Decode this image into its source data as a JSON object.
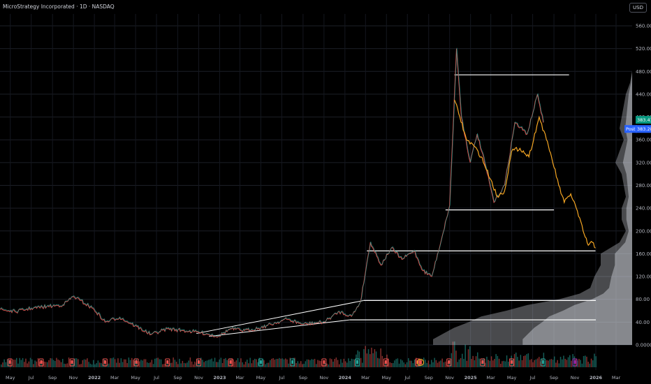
{
  "header": {
    "title": "MicroStrategy Incorporated · 1D · NASDAQ",
    "currency_button": "USD"
  },
  "price_badges": [
    {
      "text": "383.41",
      "color": "#089981",
      "value": 383.41
    },
    {
      "text": "383.28",
      "color": "#2962ff",
      "value": 383.28,
      "prefix": "Post"
    }
  ],
  "colors": {
    "background": "#000000",
    "up": "#26a69a",
    "down": "#ef5350",
    "post_line": "#f5a623",
    "volume_profile": "#d1d4dc",
    "trendline": "#ffffff",
    "earnings_flag": "#ef5350",
    "dividend_flag": "#26a69a",
    "event_flag": "#9c27b0"
  },
  "chart_data": {
    "type": "line",
    "title": "",
    "xlabel": "",
    "ylabel": "",
    "ylim": [
      0,
      560
    ],
    "y_ticks": [
      0,
      40,
      80,
      120,
      160,
      200,
      240,
      280,
      320,
      360,
      400,
      440,
      480,
      520,
      560
    ],
    "y_tick_labels": [
      "0.0000",
      "40.00",
      "80.00",
      "120.00",
      "160.00",
      "200.00",
      "240.00",
      "280.00",
      "320.00",
      "360.00",
      "400.00",
      "440.00",
      "480.00",
      "520.00",
      "560.00"
    ],
    "x_ticks": [
      {
        "label": "May",
        "date": "2021-05-01",
        "bold": false
      },
      {
        "label": "Jul",
        "date": "2021-07-01",
        "bold": false
      },
      {
        "label": "Sep",
        "date": "2021-09-01",
        "bold": false
      },
      {
        "label": "Nov",
        "date": "2021-11-01",
        "bold": false
      },
      {
        "label": "2022",
        "date": "2022-01-01",
        "bold": true
      },
      {
        "label": "Mar",
        "date": "2022-03-01",
        "bold": false
      },
      {
        "label": "May",
        "date": "2022-05-01",
        "bold": false
      },
      {
        "label": "Jul",
        "date": "2022-07-01",
        "bold": false
      },
      {
        "label": "Sep",
        "date": "2022-09-01",
        "bold": false
      },
      {
        "label": "Nov",
        "date": "2022-11-01",
        "bold": false
      },
      {
        "label": "2023",
        "date": "2023-01-01",
        "bold": true
      },
      {
        "label": "Mar",
        "date": "2023-03-01",
        "bold": false
      },
      {
        "label": "May",
        "date": "2023-05-01",
        "bold": false
      },
      {
        "label": "Jul",
        "date": "2023-07-01",
        "bold": false
      },
      {
        "label": "Sep",
        "date": "2023-09-01",
        "bold": false
      },
      {
        "label": "Nov",
        "date": "2023-11-01",
        "bold": false
      },
      {
        "label": "2024",
        "date": "2024-01-01",
        "bold": true
      },
      {
        "label": "Mar",
        "date": "2024-03-01",
        "bold": false
      },
      {
        "label": "May",
        "date": "2024-05-01",
        "bold": false
      },
      {
        "label": "Jul",
        "date": "2024-07-01",
        "bold": false
      },
      {
        "label": "Sep",
        "date": "2024-09-01",
        "bold": false
      },
      {
        "label": "Nov",
        "date": "2024-11-01",
        "bold": false
      },
      {
        "label": "2025",
        "date": "2025-01-01",
        "bold": true
      },
      {
        "label": "Mar",
        "date": "2025-03-01",
        "bold": false
      },
      {
        "label": "May",
        "date": "2025-05-01",
        "bold": false
      },
      {
        "label": "Jul",
        "date": "2025-07-01",
        "bold": false
      },
      {
        "label": "Sep",
        "date": "2025-09-01",
        "bold": false
      },
      {
        "label": "Nov",
        "date": "2025-11-01",
        "bold": false
      },
      {
        "label": "2026",
        "date": "2026-01-01",
        "bold": true
      },
      {
        "label": "Mar",
        "date": "2026-03-01",
        "bold": false
      }
    ],
    "series": [
      {
        "style": "regular-session",
        "points": [
          [
            "2021-04-01",
            62
          ],
          [
            "2021-05-15",
            58
          ],
          [
            "2021-07-01",
            64
          ],
          [
            "2021-08-15",
            67
          ],
          [
            "2021-10-01",
            70
          ],
          [
            "2021-11-01",
            85
          ],
          [
            "2021-11-20",
            78
          ],
          [
            "2021-12-31",
            62
          ],
          [
            "2022-02-01",
            40
          ],
          [
            "2022-03-15",
            48
          ],
          [
            "2022-04-15",
            38
          ],
          [
            "2022-06-15",
            18
          ],
          [
            "2022-08-01",
            28
          ],
          [
            "2022-09-15",
            25
          ],
          [
            "2022-11-01",
            22
          ],
          [
            "2022-12-28",
            15
          ],
          [
            "2023-02-01",
            28
          ],
          [
            "2023-03-15",
            25
          ],
          [
            "2023-05-01",
            30
          ],
          [
            "2023-07-15",
            45
          ],
          [
            "2023-09-01",
            36
          ],
          [
            "2023-11-01",
            40
          ],
          [
            "2023-12-15",
            58
          ],
          [
            "2024-01-20",
            50
          ],
          [
            "2024-02-15",
            75
          ],
          [
            "2024-03-15",
            180
          ],
          [
            "2024-04-15",
            140
          ],
          [
            "2024-05-15",
            170
          ],
          [
            "2024-06-15",
            150
          ],
          [
            "2024-07-20",
            165
          ],
          [
            "2024-08-15",
            130
          ],
          [
            "2024-09-10",
            120
          ],
          [
            "2024-10-10",
            190
          ],
          [
            "2024-11-01",
            245
          ],
          [
            "2024-11-21",
            520
          ],
          [
            "2024-12-05",
            400
          ],
          [
            "2024-12-31",
            320
          ],
          [
            "2025-01-20",
            370
          ],
          [
            "2025-02-15",
            310
          ],
          [
            "2025-03-10",
            250
          ],
          [
            "2025-04-10",
            280
          ],
          [
            "2025-05-10",
            390
          ],
          [
            "2025-06-15",
            370
          ],
          [
            "2025-07-15",
            440
          ],
          [
            "2025-08-01",
            390
          ]
        ]
      },
      {
        "style": "post-market",
        "points": [
          [
            "2024-11-15",
            430
          ],
          [
            "2024-12-01",
            400
          ],
          [
            "2024-12-20",
            360
          ],
          [
            "2025-01-10",
            350
          ],
          [
            "2025-02-01",
            330
          ],
          [
            "2025-03-01",
            290
          ],
          [
            "2025-03-20",
            260
          ],
          [
            "2025-04-10",
            270
          ],
          [
            "2025-05-01",
            340
          ],
          [
            "2025-05-25",
            345
          ],
          [
            "2025-06-20",
            330
          ],
          [
            "2025-07-20",
            400
          ],
          [
            "2025-08-10",
            360
          ],
          [
            "2025-08-25",
            330
          ],
          [
            "2025-09-15",
            280
          ],
          [
            "2025-10-01",
            250
          ],
          [
            "2025-10-20",
            265
          ],
          [
            "2025-11-05",
            240
          ],
          [
            "2025-11-25",
            200
          ],
          [
            "2025-12-10",
            175
          ],
          [
            "2025-12-22",
            180
          ],
          [
            "2025-12-31",
            170
          ]
        ]
      }
    ],
    "horizontal_levels": [
      {
        "value": 474,
        "from": "2024-11-15",
        "to": "2025-10-15"
      },
      {
        "value": 237,
        "from": "2024-10-20",
        "to": "2025-09-01"
      },
      {
        "value": 165,
        "from": "2024-03-05",
        "to": "2025-12-31"
      },
      {
        "value": 78,
        "from": "2024-02-25",
        "to": "2026-01-01"
      },
      {
        "value": 44,
        "from": "2024-01-15",
        "to": "2026-01-01"
      }
    ],
    "trendlines": [
      {
        "from": [
          "2022-10-25",
          20
        ],
        "to": [
          "2024-02-25",
          78
        ]
      },
      {
        "from": [
          "2022-12-01",
          15
        ],
        "to": [
          "2024-01-15",
          44
        ]
      }
    ],
    "volume_profile": [
      [
        0,
        0.95
      ],
      [
        10,
        0.95
      ],
      [
        20,
        0.9
      ],
      [
        30,
        0.85
      ],
      [
        40,
        0.78
      ],
      [
        50,
        0.72
      ],
      [
        60,
        0.6
      ],
      [
        70,
        0.5
      ],
      [
        80,
        0.35
      ],
      [
        90,
        0.25
      ],
      [
        100,
        0.2
      ],
      [
        120,
        0.18
      ],
      [
        140,
        0.15
      ],
      [
        160,
        0.15
      ],
      [
        180,
        0.06
      ],
      [
        200,
        0.03
      ],
      [
        220,
        0.05
      ],
      [
        240,
        0.05
      ],
      [
        260,
        0.03
      ],
      [
        280,
        0.04
      ],
      [
        300,
        0.05
      ],
      [
        320,
        0.08
      ],
      [
        340,
        0.06
      ],
      [
        360,
        0.04
      ],
      [
        380,
        0.06
      ],
      [
        400,
        0.05
      ],
      [
        420,
        0.04
      ],
      [
        440,
        0.03
      ],
      [
        460,
        0.01
      ],
      [
        480,
        0.0
      ],
      [
        520,
        0.0
      ],
      [
        560,
        0.0
      ]
    ],
    "volume_note": "volume histogram bars along the bottom pane (values not labeled)",
    "event_markers": [
      {
        "type": "earnings",
        "date": "2021-04-30"
      },
      {
        "type": "earnings",
        "date": "2021-07-30"
      },
      {
        "type": "earnings",
        "date": "2021-10-28"
      },
      {
        "type": "earnings",
        "date": "2022-02-01"
      },
      {
        "type": "earnings",
        "date": "2022-05-03"
      },
      {
        "type": "earnings",
        "date": "2022-08-02"
      },
      {
        "type": "earnings",
        "date": "2022-11-01"
      },
      {
        "type": "earnings",
        "date": "2023-02-02"
      },
      {
        "type": "dividend",
        "date": "2023-05-01"
      },
      {
        "type": "dividend",
        "date": "2023-08-01"
      },
      {
        "type": "earnings",
        "date": "2023-11-01"
      },
      {
        "type": "dividend",
        "date": "2024-02-06"
      },
      {
        "type": "earnings",
        "date": "2024-04-29"
      },
      {
        "type": "earnings",
        "date": "2024-07-31"
      },
      {
        "type": "event",
        "date": "2024-08-08"
      },
      {
        "type": "earnings",
        "date": "2024-10-30"
      },
      {
        "type": "earnings",
        "date": "2025-02-05"
      },
      {
        "type": "earnings",
        "date": "2025-05-01"
      },
      {
        "type": "dividend",
        "date": "2025-07-31"
      },
      {
        "type": "event",
        "date": "2025-11-01"
      }
    ],
    "grid": true,
    "legend": "none"
  }
}
